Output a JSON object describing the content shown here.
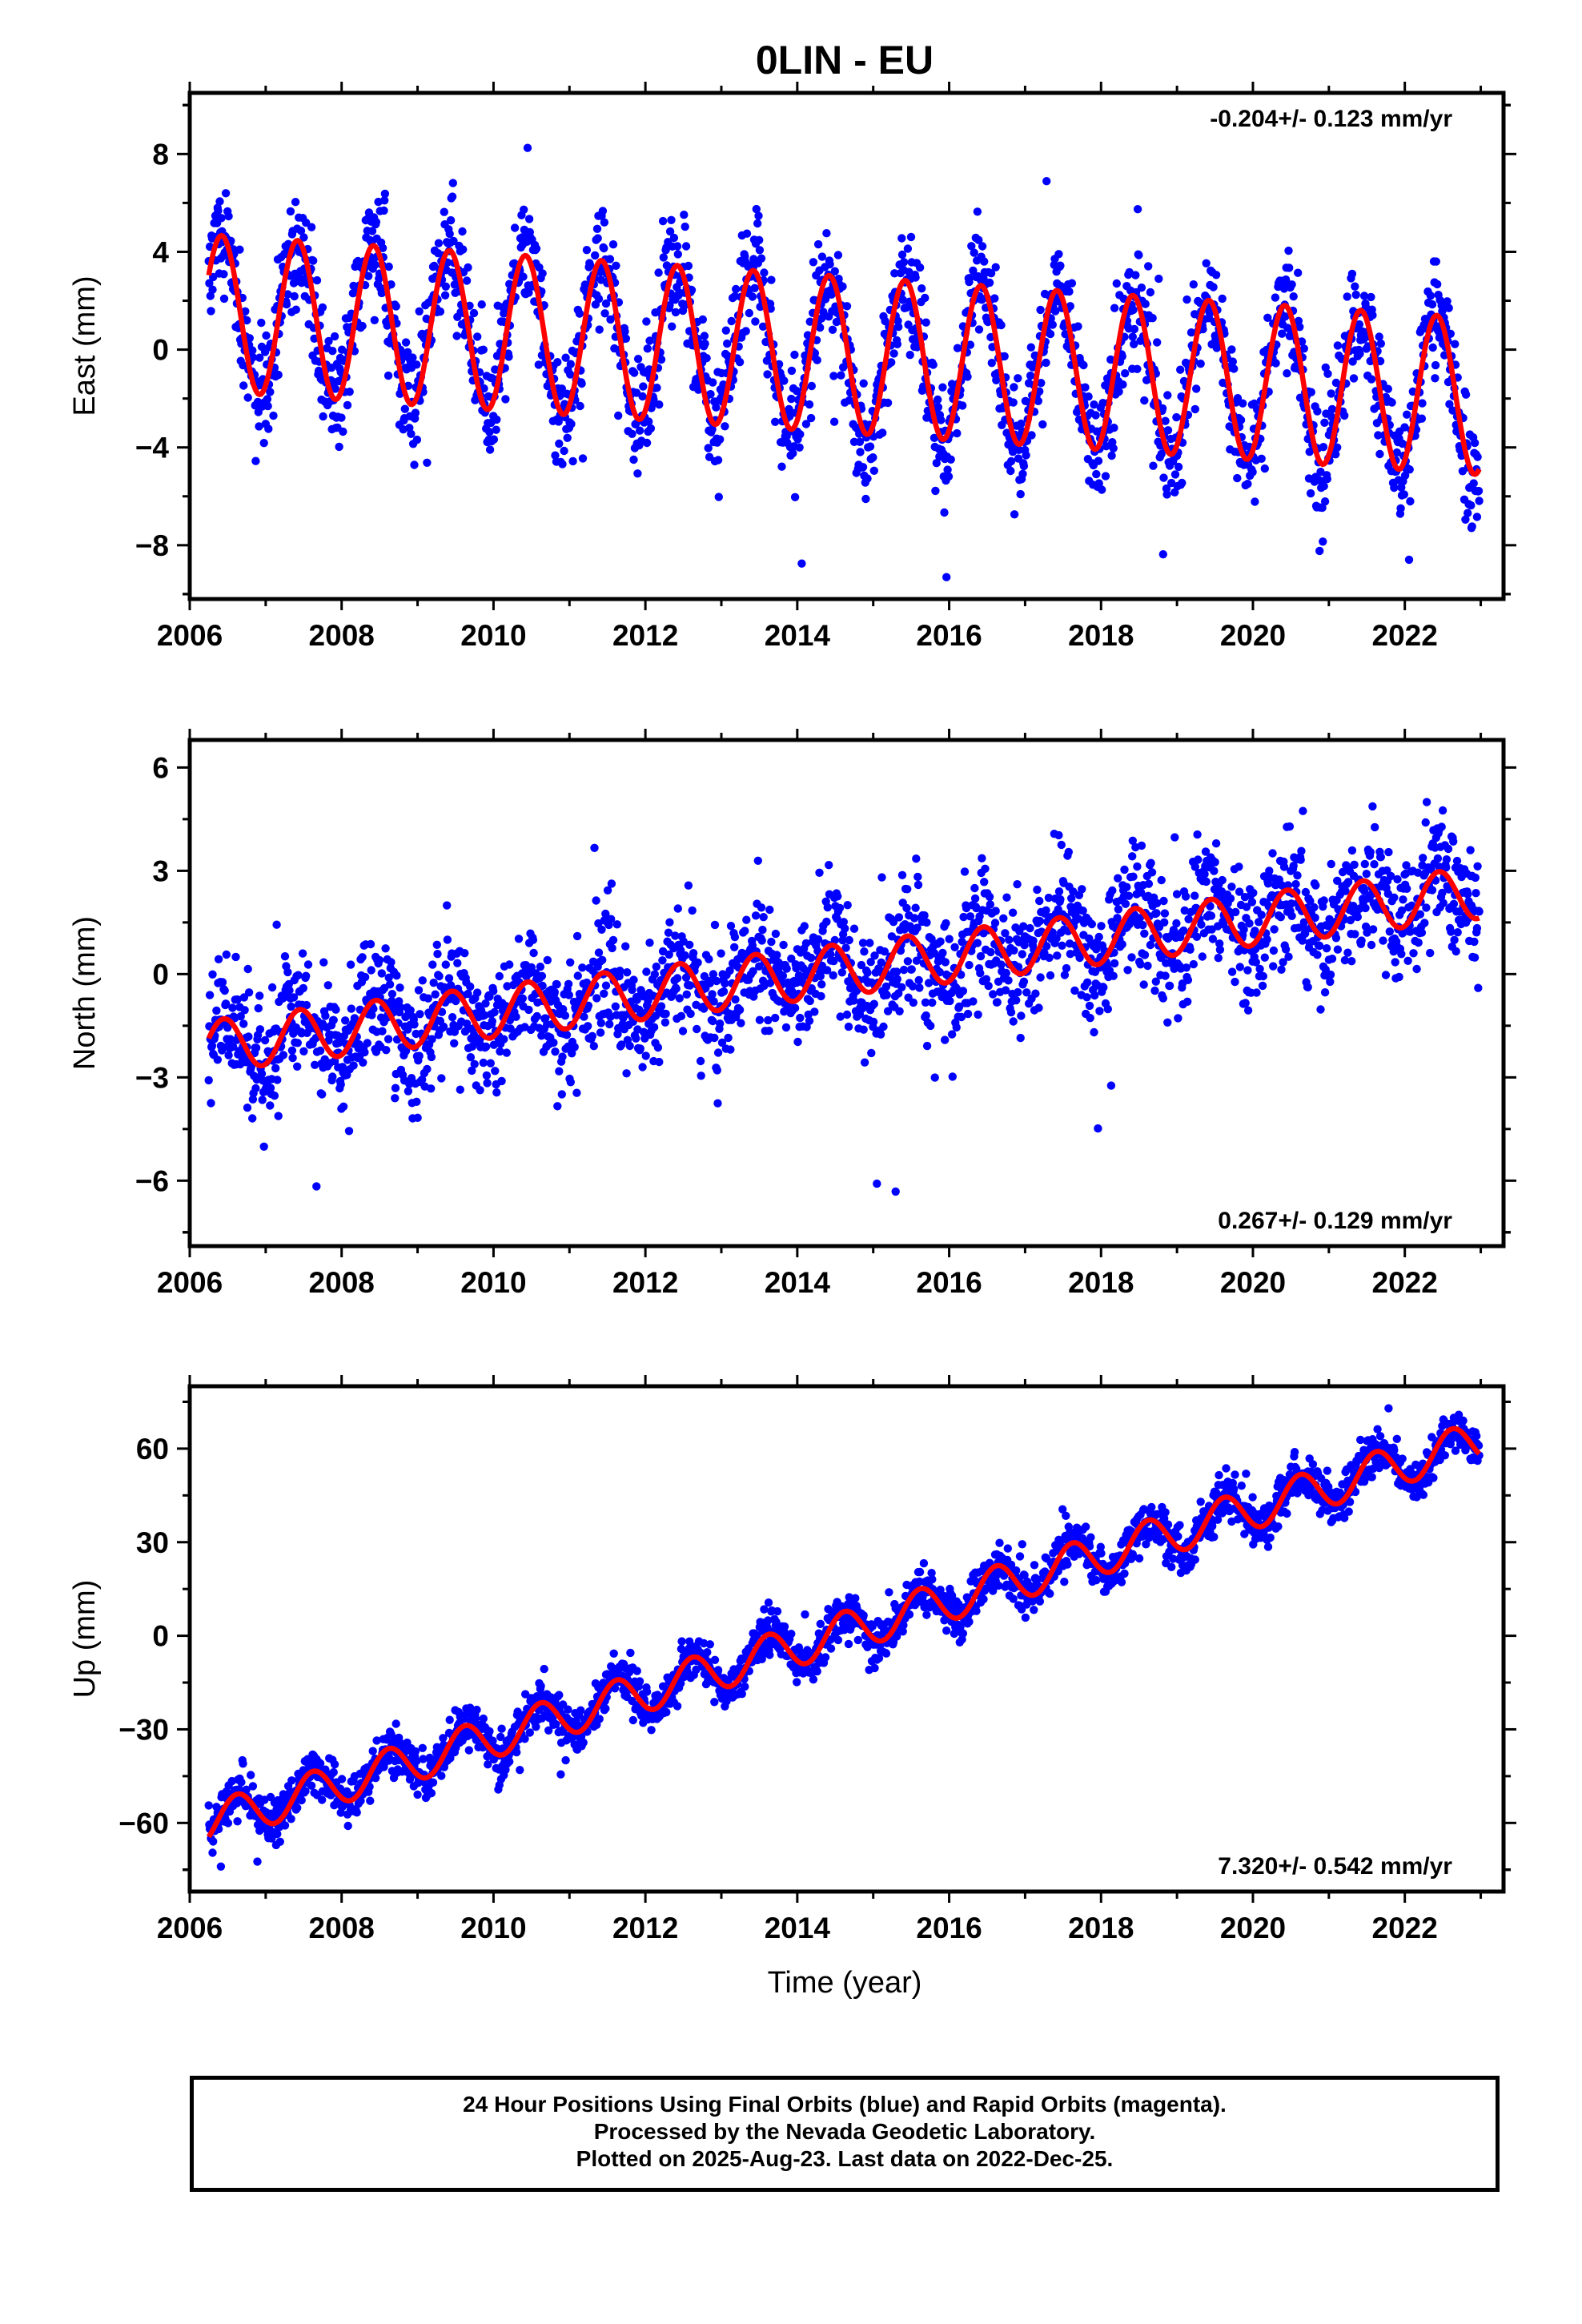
{
  "title": "0LIN - EU",
  "xlabel": "Time (year)",
  "colors": {
    "final_orbits": "#0000ff",
    "model": "#ff0000",
    "frame": "#000000"
  },
  "caption": {
    "line1": "24 Hour Positions Using Final Orbits (blue) and Rapid Orbits (magenta).",
    "line2": "Processed by the Nevada Geodetic Laboratory.",
    "line3": "Plotted on 2025-Aug-23. Last data on 2022-Dec-25."
  },
  "chart_data": [
    {
      "type": "scatter",
      "component": "east",
      "ylabel": "East (mm)",
      "rate_label": "-0.204+/- 0.123 mm/yr",
      "rate_position": "top-right",
      "xlim": [
        2006.0,
        2023.3
      ],
      "ylim": [
        -10.2,
        10.5
      ],
      "xticks": [
        2006,
        2008,
        2010,
        2012,
        2014,
        2016,
        2018,
        2020,
        2022
      ],
      "xtick_labels": [
        "2006",
        "2008",
        "2010",
        "2012",
        "2014",
        "2016",
        "2018",
        "2020",
        "2022"
      ],
      "yticks": [
        -8,
        -4,
        0,
        4,
        8
      ],
      "ytick_labels": [
        "−8",
        "−4",
        "0",
        "4",
        "8"
      ],
      "data_range": [
        2006.25,
        2022.98
      ],
      "model": {
        "offset": 1.5,
        "slope_mm_yr": -0.204,
        "ref_year": 2006.25,
        "annual_amplitude": 3.2,
        "phase_peak_year_fraction": 0.42
      },
      "scatter": {
        "noise_mm": 1.4,
        "points": 2300
      },
      "series": [
        {
          "name": "Final Orbits",
          "role": "daily positions",
          "color": "#0000ff"
        },
        {
          "name": "Model",
          "role": "fit",
          "color": "#ff0000"
        }
      ]
    },
    {
      "type": "scatter",
      "component": "north",
      "ylabel": "North (mm)",
      "rate_label": "0.267+/- 0.129 mm/yr",
      "rate_position": "bottom-right",
      "xlim": [
        2006.0,
        2023.3
      ],
      "ylim": [
        -7.9,
        6.8
      ],
      "xticks": [
        2006,
        2008,
        2010,
        2012,
        2014,
        2016,
        2018,
        2020,
        2022
      ],
      "xtick_labels": [
        "2006",
        "2008",
        "2010",
        "2012",
        "2014",
        "2016",
        "2018",
        "2020",
        "2022"
      ],
      "yticks": [
        -6,
        -3,
        0,
        3,
        6
      ],
      "ytick_labels": [
        "−6",
        "−3",
        "0",
        "3",
        "6"
      ],
      "data_range": [
        2006.25,
        2022.98
      ],
      "model": {
        "offset": -2.1,
        "slope_mm_yr": 0.267,
        "ref_year": 2006.25,
        "annual_amplitude": 0.75,
        "phase_peak_year_fraction": 0.45
      },
      "scatter": {
        "noise_mm": 1.1,
        "points": 2300
      },
      "series": [
        {
          "name": "Final Orbits",
          "role": "daily positions",
          "color": "#0000ff"
        },
        {
          "name": "Model",
          "role": "fit",
          "color": "#ff0000"
        }
      ]
    },
    {
      "type": "scatter",
      "component": "up",
      "ylabel": "Up (mm)",
      "rate_label": "7.320+/- 0.542 mm/yr",
      "rate_position": "bottom-right",
      "xlim": [
        2006.0,
        2023.3
      ],
      "ylim": [
        -82,
        80
      ],
      "xticks": [
        2006,
        2008,
        2010,
        2012,
        2014,
        2016,
        2018,
        2020,
        2022
      ],
      "xtick_labels": [
        "2006",
        "2008",
        "2010",
        "2012",
        "2014",
        "2016",
        "2018",
        "2020",
        "2022"
      ],
      "yticks": [
        -60,
        -30,
        0,
        30,
        60
      ],
      "ytick_labels": [
        "−60",
        "−30",
        "0",
        "30",
        "60"
      ],
      "data_range": [
        2006.25,
        2022.98
      ],
      "model": {
        "offset": -60,
        "slope_mm_yr": 7.32,
        "ref_year": 2006.25,
        "annual_amplitude": 6.5,
        "phase_peak_year_fraction": 0.62
      },
      "scatter": {
        "noise_mm": 4.2,
        "points": 2300
      },
      "series": [
        {
          "name": "Final Orbits",
          "role": "daily positions",
          "color": "#0000ff"
        },
        {
          "name": "Model",
          "role": "fit",
          "color": "#ff0000"
        }
      ]
    }
  ]
}
